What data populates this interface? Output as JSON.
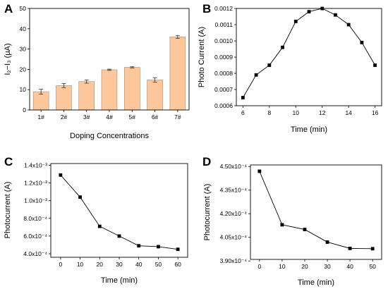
{
  "panels": [
    {
      "letter": "A",
      "chart_data": {
        "type": "bar",
        "title": "",
        "xlabel": "Doping Concentrations",
        "ylabel": "I₂−I₃ (μA)",
        "categories": [
          "1#",
          "2#",
          "3#",
          "4#",
          "5#",
          "6#",
          "7#"
        ],
        "values": [
          9.0,
          12.0,
          14.0,
          19.8,
          21.0,
          14.8,
          36.0
        ],
        "errors": [
          1.2,
          1.0,
          0.8,
          0.3,
          0.3,
          1.1,
          0.7
        ],
        "ylim": [
          0,
          50
        ],
        "yticks": [
          "0",
          "10",
          "20",
          "30",
          "40",
          "50"
        ],
        "bar_color": "#fcc89b",
        "bar_edge_color": "#a88a6c",
        "grid": false,
        "legend": "none"
      }
    },
    {
      "letter": "B",
      "chart_data": {
        "type": "line",
        "title": "",
        "xlabel": "Time (min)",
        "ylabel": "Photo Current (A)",
        "x": [
          6,
          7,
          8,
          9,
          10,
          11,
          12,
          13,
          14,
          15,
          16
        ],
        "y": [
          0.00065,
          0.00079,
          0.00085,
          0.00096,
          0.00112,
          0.00118,
          0.0012,
          0.00116,
          0.0011,
          0.00099,
          0.00085
        ],
        "xlim": [
          5.5,
          16.5
        ],
        "ylim": [
          0.0006,
          0.0012
        ],
        "xticks": [
          "6",
          "8",
          "10",
          "12",
          "14",
          "16"
        ],
        "yticks": [
          "0.0006",
          "0.0007",
          "0.0008",
          "0.0009",
          "0.0010",
          "0.0011",
          "0.0012"
        ],
        "marker": "square",
        "color": "#000000",
        "grid": false,
        "legend": "none"
      }
    },
    {
      "letter": "C",
      "chart_data": {
        "type": "line",
        "title": "",
        "xlabel": "Time (min)",
        "ylabel": "Photocurrent (A)",
        "x": [
          0,
          10,
          20,
          30,
          40,
          50,
          60
        ],
        "y": [
          0.00129,
          0.00104,
          0.00071,
          0.0006,
          0.00049,
          0.00048,
          0.00045
        ],
        "xlim": [
          -5,
          65
        ],
        "ylim": [
          0.00036,
          0.00142
        ],
        "xticks": [
          "0",
          "10",
          "20",
          "30",
          "40",
          "50",
          "60"
        ],
        "yticks": [
          "4.0x10⁻⁴",
          "6.0x10⁻⁴",
          "8.0x10⁻⁴",
          "1.0x10⁻³",
          "1.2x10⁻³",
          "1.4x10⁻³"
        ],
        "marker": "square",
        "color": "#000000",
        "grid": false,
        "legend": "none"
      }
    },
    {
      "letter": "D",
      "chart_data": {
        "type": "line",
        "title": "",
        "xlabel": "Time (min)",
        "ylabel": "Photocurrent (A)",
        "x": [
          0,
          10,
          20,
          30,
          40,
          50
        ],
        "y": [
          0.000447,
          0.000413,
          0.00041,
          0.000402,
          0.000398,
          0.0003978
        ],
        "xlim": [
          -4,
          54
        ],
        "ylim": [
          0.000391,
          0.000451
        ],
        "xticks": [
          "0",
          "10",
          "20",
          "30",
          "40",
          "50"
        ],
        "yticks": [
          "3.90x10⁻⁴",
          "4.05x10⁻⁴",
          "4.20x10⁻⁴",
          "4.35x10⁻⁴",
          "4.50x10⁻⁴"
        ],
        "marker": "square",
        "color": "#000000",
        "grid": false,
        "legend": "none"
      }
    }
  ]
}
